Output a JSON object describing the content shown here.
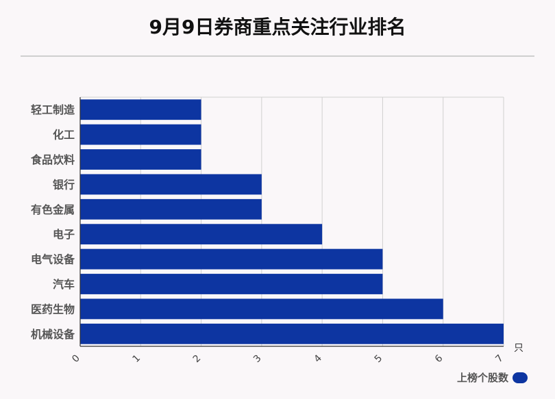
{
  "chart_data": {
    "type": "bar",
    "orientation": "horizontal",
    "title": "9月9日券商重点关注行业排名",
    "categories": [
      "轻工制造",
      "化工",
      "食品饮料",
      "银行",
      "有色金属",
      "电子",
      "电气设备",
      "汽车",
      "医药生物",
      "机械设备"
    ],
    "series": [
      {
        "name": "上榜个股数",
        "values": [
          2,
          2,
          2,
          3,
          3,
          4,
          5,
          5,
          6,
          7
        ]
      }
    ],
    "xlabel": "只",
    "ylabel": "",
    "xlim": [
      0,
      7
    ],
    "xticks": [
      "0",
      "1",
      "2",
      "3",
      "4",
      "5",
      "6",
      "7"
    ],
    "grid": true,
    "legend_position": "bottom-right",
    "bar_color": "#0d35a1"
  }
}
